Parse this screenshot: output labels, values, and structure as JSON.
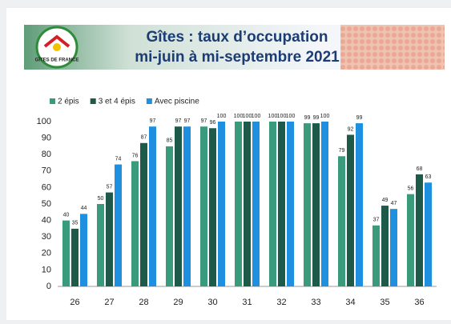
{
  "logo": "GÎTES DE FRANCE",
  "chart_data": {
    "type": "bar",
    "title": "Gîtes : taux d’occupation",
    "subtitle": "mi-juin à mi-septembre 2021",
    "categories": [
      "26",
      "27",
      "28",
      "29",
      "30",
      "31",
      "32",
      "33",
      "34",
      "35",
      "36"
    ],
    "series": [
      {
        "name": "2 épis",
        "color": "#3a9a7c",
        "values": [
          40,
          50,
          76,
          85,
          97,
          100,
          100,
          99,
          79,
          37,
          56
        ]
      },
      {
        "name": "3 et 4 épis",
        "color": "#1d5a49",
        "values": [
          35,
          57,
          87,
          97,
          96,
          100,
          100,
          99,
          92,
          49,
          68
        ]
      },
      {
        "name": "Avec piscine",
        "color": "#1f8fdf",
        "values": [
          44,
          74,
          97,
          97,
          100,
          100,
          100,
          100,
          99,
          47,
          63
        ]
      }
    ],
    "ylim": [
      0,
      100
    ],
    "yticks": [
      0,
      10,
      20,
      30,
      40,
      50,
      60,
      70,
      80,
      90,
      100
    ],
    "grid": false,
    "legend": "top-left"
  }
}
